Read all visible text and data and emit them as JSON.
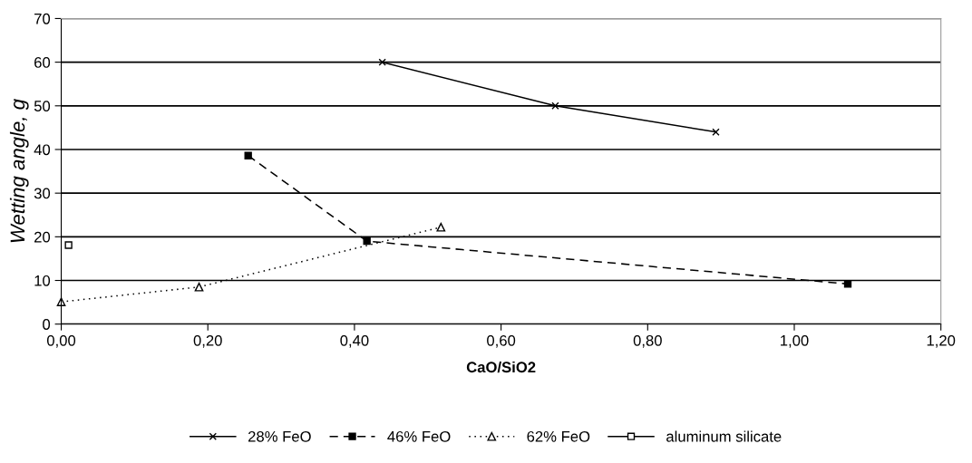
{
  "chart_data": {
    "type": "line",
    "xlabel": "CaO/SiO2",
    "ylabel": "Wetting angle, g",
    "xlim": [
      0,
      1.2
    ],
    "ylim": [
      0,
      70
    ],
    "xticks": [
      {
        "value": 0,
        "label": "0,00"
      },
      {
        "value": 0.2,
        "label": "0,20"
      },
      {
        "value": 0.4,
        "label": "0,40"
      },
      {
        "value": 0.6,
        "label": "0,60"
      },
      {
        "value": 0.8,
        "label": "0,80"
      },
      {
        "value": 1.0,
        "label": "1,00"
      },
      {
        "value": 1.2,
        "label": "1,20"
      }
    ],
    "yticks": [
      0,
      10,
      20,
      30,
      40,
      50,
      60,
      70
    ],
    "grid": "y",
    "legend": "bottom",
    "series": [
      {
        "name": "28% FeO",
        "color": "#000000",
        "marker": "cross",
        "line_style": "solid",
        "x": [
          0.438,
          0.674,
          0.893
        ],
        "values": [
          60,
          50,
          44
        ]
      },
      {
        "name": "46% FeO",
        "color": "#000000",
        "marker": "square",
        "line_style": "dashed",
        "x": [
          0.255,
          0.417,
          1.073
        ],
        "values": [
          38.6,
          19,
          9.2
        ]
      },
      {
        "name": "62% FeO",
        "color": "#000000",
        "marker": "triangle",
        "line_style": "dotted",
        "x": [
          0.0,
          0.188,
          0.518
        ],
        "values": [
          5.1,
          8.5,
          22.2
        ]
      },
      {
        "name": "aluminum silicate",
        "color": "#000000",
        "marker": "square",
        "line_style": "solid",
        "x": [
          0.01
        ],
        "values": [
          18.1
        ]
      }
    ]
  }
}
